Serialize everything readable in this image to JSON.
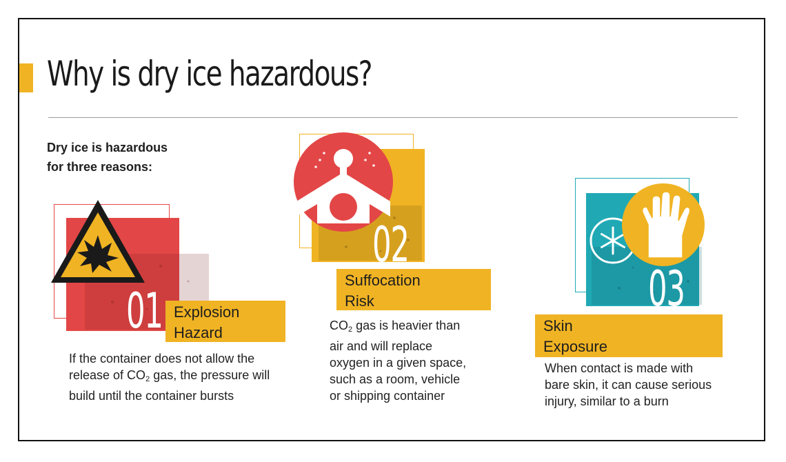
{
  "title": "Why is dry ice hazardous?",
  "intro": {
    "line1": "Dry ice is hazardous",
    "line2": "for three reasons:"
  },
  "colors": {
    "accent": "#f0b323",
    "red": "#e34646",
    "teal": "#20a9b4",
    "yellow": "#f0b323",
    "text": "#222222"
  },
  "hazards": [
    {
      "number": "01",
      "label_line1": "Explosion",
      "label_line2": "Hazard",
      "icon": "explosion-warning-icon",
      "desc": [
        "If the container does not allow the",
        "release of CO",
        "2",
        " gas, the pressure will",
        "build until the container bursts"
      ]
    },
    {
      "number": "02",
      "label_line1": "Suffocation",
      "label_line2": "Risk",
      "icon": "suffocation-lungs-icon",
      "desc": [
        "CO",
        "2",
        " gas is heavier than",
        "air and will replace",
        "oxygen in a given space,",
        "such as a room, vehicle",
        "or shipping container"
      ]
    },
    {
      "number": "03",
      "label_line1": "Skin",
      "label_line2": "Exposure",
      "icon": "glove-icon",
      "icon2": "snowflake-icon",
      "desc": [
        "When contact is made with",
        "bare skin, it can cause serious",
        "injury, similar to a burn"
      ]
    }
  ]
}
